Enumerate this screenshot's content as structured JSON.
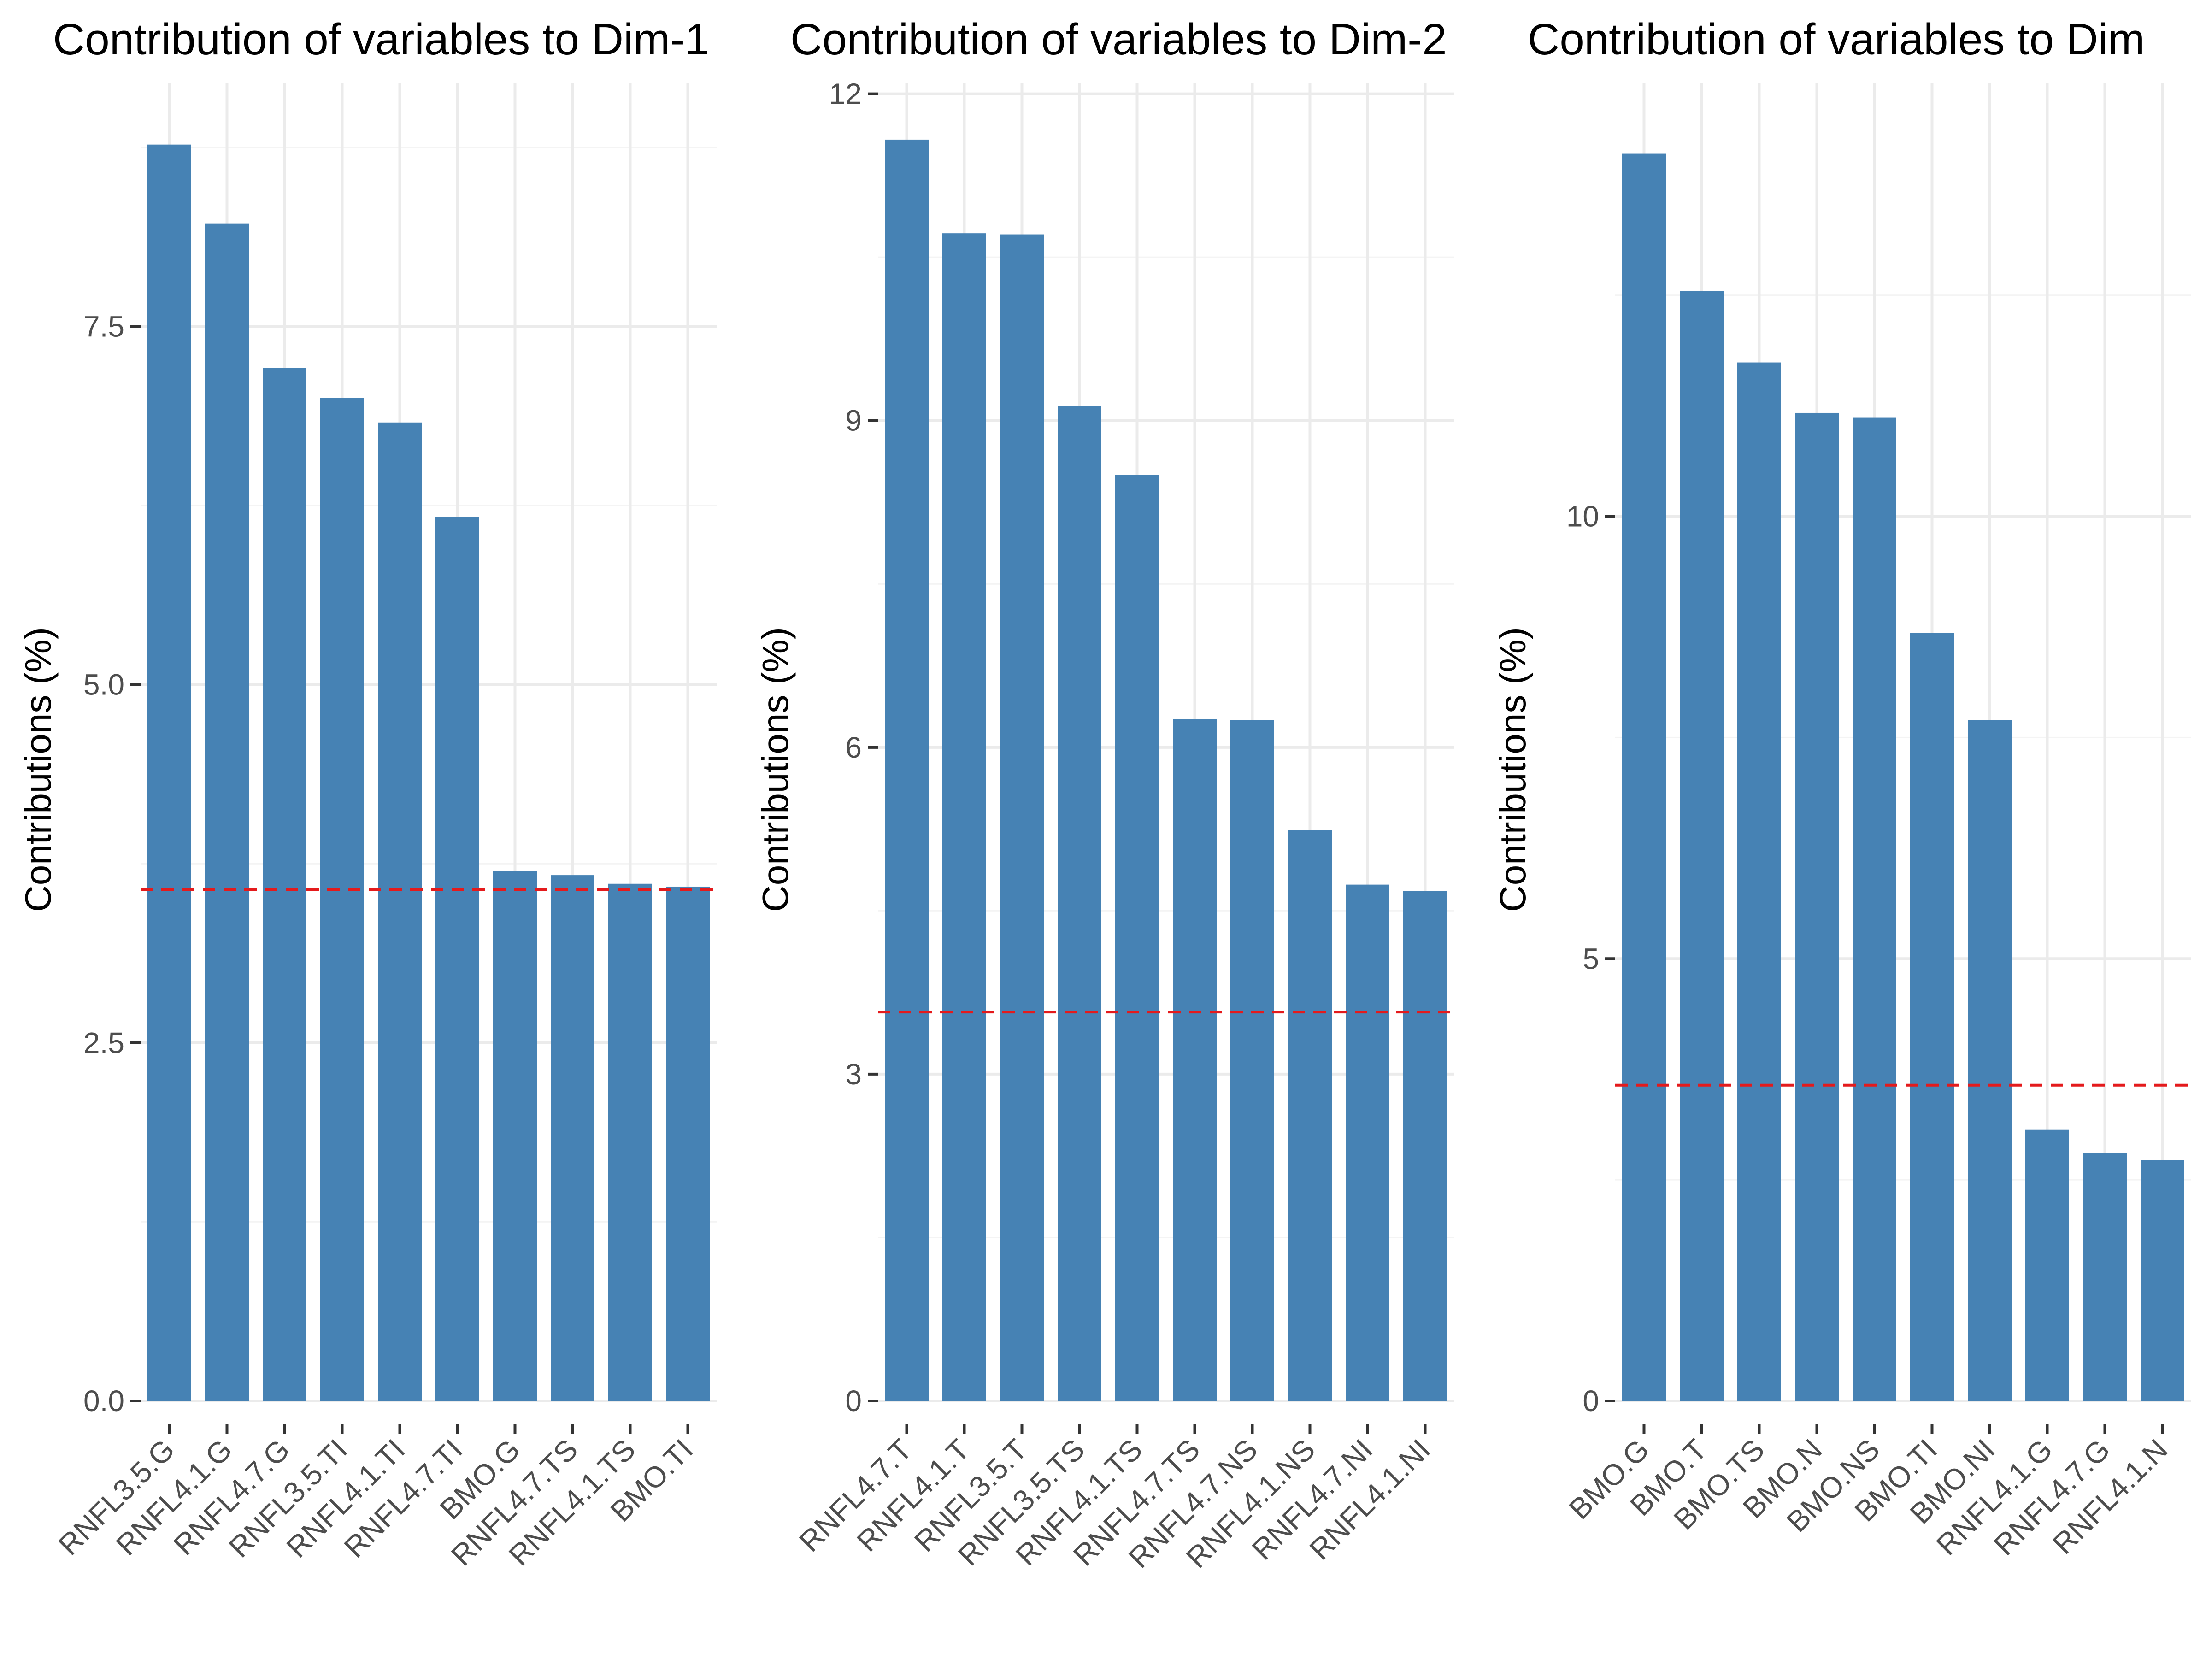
{
  "colors": {
    "bar": "#4682b4",
    "reference_line": "#e41a1c",
    "grid_major": "#ebebeb",
    "grid_minor": "#f4f4f4",
    "tick_text": "#4d4d4d",
    "background": "#ffffff"
  },
  "chart_data": [
    {
      "type": "bar",
      "title": "Contribution of variables to Dim-1",
      "ylabel": "Contributions (%)",
      "xlabel": "",
      "categories": [
        "RNFL3.5.G",
        "RNFL4.1.G",
        "RNFL4.7.G",
        "RNFL3.5.TI",
        "RNFL4.1.TI",
        "RNFL4.7.TI",
        "BMO.G",
        "RNFL4.7.TS",
        "RNFL4.1.TS",
        "BMO.TI"
      ],
      "values": [
        8.77,
        8.22,
        7.21,
        7.0,
        6.83,
        6.17,
        3.7,
        3.67,
        3.61,
        3.59
      ],
      "reference_line": 3.57,
      "ylim": [
        0,
        9.2
      ],
      "yticks": [
        0.0,
        2.5,
        5.0,
        7.5
      ],
      "ytick_labels": [
        "0.0",
        "2.5",
        "5.0",
        "7.5"
      ],
      "yminor": [
        1.25,
        3.75,
        6.25,
        8.75
      ],
      "grid": true
    },
    {
      "type": "bar",
      "title": "Contribution of variables to Dim-2",
      "ylabel": "Contributions (%)",
      "xlabel": "",
      "categories": [
        "RNFL4.7.T",
        "RNFL4.1.T",
        "RNFL3.5.T",
        "RNFL3.5.TS",
        "RNFL4.1.TS",
        "RNFL4.7.TS",
        "RNFL4.7.NS",
        "RNFL4.1.NS",
        "RNFL4.7.NI",
        "RNFL4.1.NI"
      ],
      "values": [
        11.58,
        10.72,
        10.71,
        9.13,
        8.5,
        6.26,
        6.25,
        5.24,
        4.74,
        4.68
      ],
      "reference_line": 3.57,
      "ylim": [
        0,
        12.1
      ],
      "yticks": [
        0,
        3,
        6,
        9,
        12
      ],
      "ytick_labels": [
        "0",
        "3",
        "6",
        "9",
        "12"
      ],
      "yminor": [
        1.5,
        4.5,
        7.5,
        10.5
      ],
      "grid": true
    },
    {
      "type": "bar",
      "title": "Contribution of variables to Dim",
      "ylabel": "Contributions (%)",
      "xlabel": "",
      "categories": [
        "BMO.G",
        "BMO.T",
        "BMO.TS",
        "BMO.N",
        "BMO.NS",
        "BMO.TI",
        "BMO.NI",
        "RNFL4.1.G",
        "RNFL4.7.G",
        "RNFL4.1.N"
      ],
      "values": [
        14.1,
        12.55,
        11.74,
        11.17,
        11.12,
        8.68,
        7.7,
        3.07,
        2.8,
        2.72
      ],
      "reference_line": 3.57,
      "ylim": [
        0,
        14.9
      ],
      "yticks": [
        0,
        5,
        10
      ],
      "ytick_labels": [
        "0",
        "5",
        "10"
      ],
      "yminor": [
        2.5,
        7.5,
        12.5
      ],
      "grid": true
    }
  ]
}
